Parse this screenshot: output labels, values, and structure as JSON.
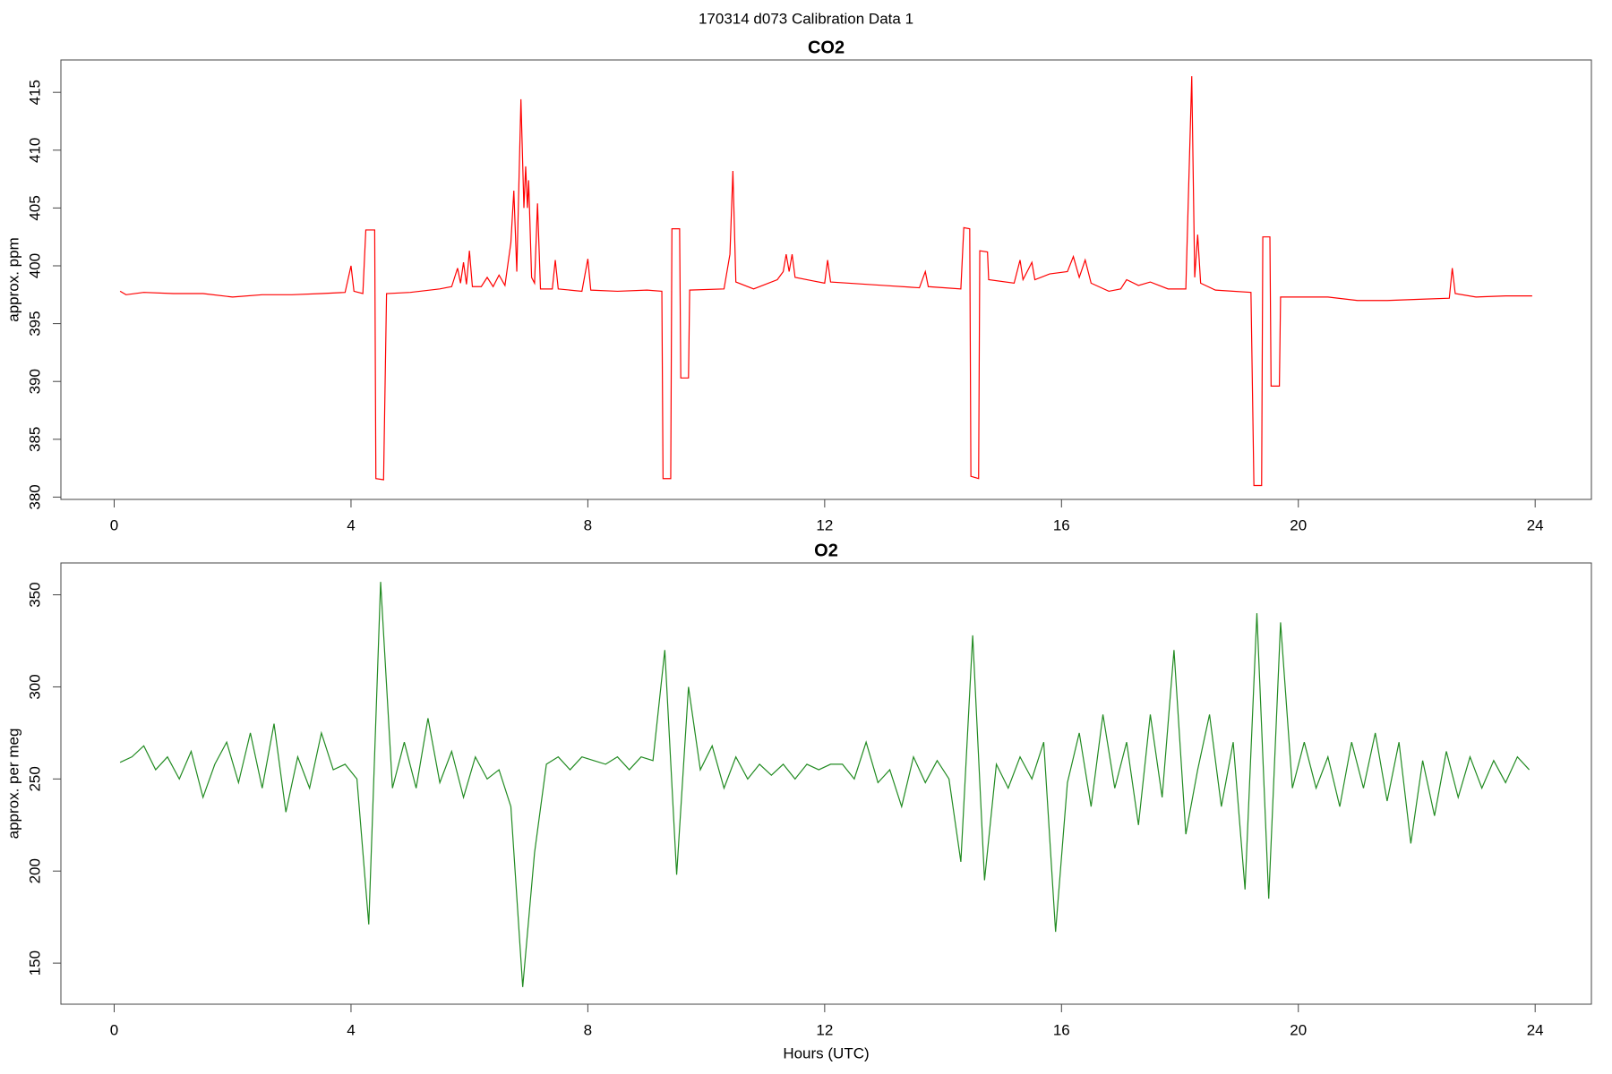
{
  "title": "170314   d073   Calibration Data 1",
  "chart_data": [
    {
      "type": "line",
      "title": "CO2",
      "ylabel": "approx. ppm",
      "color": "#ff0000",
      "x": [
        0.1,
        0.2,
        0.5,
        1,
        1.5,
        2,
        2.5,
        3,
        3.5,
        3.9,
        4.0,
        4.05,
        4.2,
        4.25,
        4.4,
        4.42,
        4.55,
        4.6,
        5,
        5.5,
        5.7,
        5.8,
        5.85,
        5.9,
        5.95,
        6.0,
        6.05,
        6.2,
        6.3,
        6.4,
        6.5,
        6.6,
        6.7,
        6.75,
        6.8,
        6.87,
        6.92,
        6.95,
        6.98,
        7.0,
        7.05,
        7.1,
        7.15,
        7.2,
        7.4,
        7.45,
        7.5,
        7.9,
        8.0,
        8.05,
        8.5,
        9.0,
        9.25,
        9.27,
        9.4,
        9.42,
        9.55,
        9.57,
        9.7,
        9.72,
        10.3,
        10.4,
        10.45,
        10.5,
        10.8,
        11.2,
        11.3,
        11.35,
        11.4,
        11.45,
        11.5,
        11.8,
        12.0,
        12.05,
        12.1,
        13,
        13.6,
        13.7,
        13.75,
        14.3,
        14.35,
        14.45,
        14.47,
        14.6,
        14.62,
        14.75,
        14.77,
        15.2,
        15.3,
        15.35,
        15.5,
        15.55,
        15.8,
        16.1,
        16.2,
        16.3,
        16.4,
        16.5,
        16.8,
        17.0,
        17.1,
        17.3,
        17.5,
        17.8,
        18.1,
        18.2,
        18.25,
        18.3,
        18.35,
        18.6,
        19.2,
        19.25,
        19.38,
        19.4,
        19.52,
        19.54,
        19.68,
        19.7,
        20.5,
        21,
        21.5,
        22,
        22.55,
        22.6,
        22.65,
        23,
        23.5,
        23.95
      ],
      "values": [
        397.8,
        397.5,
        397.7,
        397.6,
        397.6,
        397.3,
        397.5,
        397.5,
        397.6,
        397.7,
        400,
        397.8,
        397.6,
        403.1,
        403.1,
        381.6,
        381.5,
        397.6,
        397.7,
        398,
        398.2,
        399.8,
        398.5,
        400.3,
        398.4,
        401.3,
        398.2,
        398.2,
        399,
        398.2,
        399.2,
        398.3,
        402,
        406.5,
        399.5,
        414.4,
        405,
        408.6,
        405,
        407.4,
        399,
        398.5,
        405.4,
        398,
        398,
        400.5,
        398,
        397.8,
        400.6,
        397.9,
        397.8,
        397.9,
        397.8,
        381.6,
        381.6,
        403.2,
        403.2,
        390.3,
        390.3,
        397.9,
        398,
        401,
        408.2,
        398.6,
        398,
        398.8,
        399.5,
        401,
        399.5,
        401,
        399,
        398.7,
        398.5,
        400.5,
        398.6,
        398.3,
        398.1,
        399.5,
        398.2,
        398,
        403.3,
        403.2,
        381.8,
        381.6,
        401.3,
        401.2,
        398.8,
        398.5,
        400.5,
        398.8,
        400.3,
        398.8,
        399.3,
        399.5,
        400.8,
        399,
        400.5,
        398.5,
        397.8,
        398,
        398.8,
        398.3,
        398.6,
        398,
        398,
        416.4,
        399,
        402.7,
        398.5,
        397.9,
        397.7,
        381,
        381,
        402.5,
        402.5,
        389.6,
        389.6,
        397.3,
        397.3,
        397,
        397,
        397.1,
        397.2,
        399.8,
        397.6,
        397.3,
        397.4,
        397.4
      ],
      "xlim": [
        -0.9,
        24.95
      ],
      "ylim": [
        379.8,
        417.8
      ],
      "xticks": [
        0,
        4,
        8,
        12,
        16,
        20,
        24
      ],
      "yticks": [
        380,
        385,
        390,
        395,
        400,
        405,
        410,
        415
      ]
    },
    {
      "type": "line",
      "title": "O2",
      "ylabel": "approx. per meg",
      "xlabel": "Hours (UTC)",
      "color": "#228b22",
      "x": [
        0.1,
        0.3,
        0.5,
        0.7,
        0.9,
        1.1,
        1.3,
        1.5,
        1.7,
        1.9,
        2.1,
        2.3,
        2.5,
        2.7,
        2.9,
        3.1,
        3.3,
        3.5,
        3.7,
        3.9,
        4.1,
        4.3,
        4.5,
        4.7,
        4.9,
        5.1,
        5.3,
        5.5,
        5.7,
        5.9,
        6.1,
        6.3,
        6.5,
        6.7,
        6.9,
        7.1,
        7.3,
        7.5,
        7.7,
        7.9,
        8.1,
        8.3,
        8.5,
        8.7,
        8.9,
        9.1,
        9.3,
        9.5,
        9.7,
        9.9,
        10.1,
        10.3,
        10.5,
        10.7,
        10.9,
        11.1,
        11.3,
        11.5,
        11.7,
        11.9,
        12.1,
        12.3,
        12.5,
        12.7,
        12.9,
        13.1,
        13.3,
        13.5,
        13.7,
        13.9,
        14.1,
        14.3,
        14.5,
        14.7,
        14.9,
        15.1,
        15.3,
        15.5,
        15.7,
        15.9,
        16.1,
        16.3,
        16.5,
        16.7,
        16.9,
        17.1,
        17.3,
        17.5,
        17.7,
        17.9,
        18.1,
        18.3,
        18.5,
        18.7,
        18.9,
        19.1,
        19.3,
        19.5,
        19.7,
        19.9,
        20.1,
        20.3,
        20.5,
        20.7,
        20.9,
        21.1,
        21.3,
        21.5,
        21.7,
        21.9,
        22.1,
        22.3,
        22.5,
        22.7,
        22.9,
        23.1,
        23.3,
        23.5,
        23.7,
        23.9
      ],
      "values": [
        259,
        262,
        268,
        255,
        262,
        250,
        265,
        240,
        258,
        270,
        248,
        275,
        245,
        280,
        232,
        262,
        245,
        275,
        255,
        258,
        250,
        171,
        357,
        245,
        270,
        245,
        283,
        248,
        265,
        240,
        262,
        250,
        255,
        235,
        137,
        210,
        258,
        262,
        255,
        262,
        260,
        258,
        262,
        255,
        262,
        260,
        320,
        198,
        300,
        255,
        268,
        245,
        262,
        250,
        258,
        252,
        258,
        250,
        258,
        255,
        258,
        258,
        250,
        270,
        248,
        255,
        235,
        262,
        248,
        260,
        250,
        205,
        328,
        195,
        258,
        245,
        262,
        250,
        270,
        167,
        248,
        275,
        235,
        285,
        245,
        270,
        225,
        285,
        240,
        320,
        220,
        255,
        285,
        235,
        270,
        190,
        340,
        185,
        335,
        245,
        270,
        245,
        262,
        235,
        270,
        245,
        275,
        238,
        270,
        215,
        260,
        230,
        265,
        240,
        262,
        245,
        260,
        248,
        262,
        255
      ],
      "xlim": [
        -0.9,
        24.95
      ],
      "ylim": [
        127.7,
        367.3
      ],
      "xticks": [
        0,
        4,
        8,
        12,
        16,
        20,
        24
      ],
      "yticks": [
        150,
        200,
        250,
        300,
        350
      ]
    }
  ]
}
